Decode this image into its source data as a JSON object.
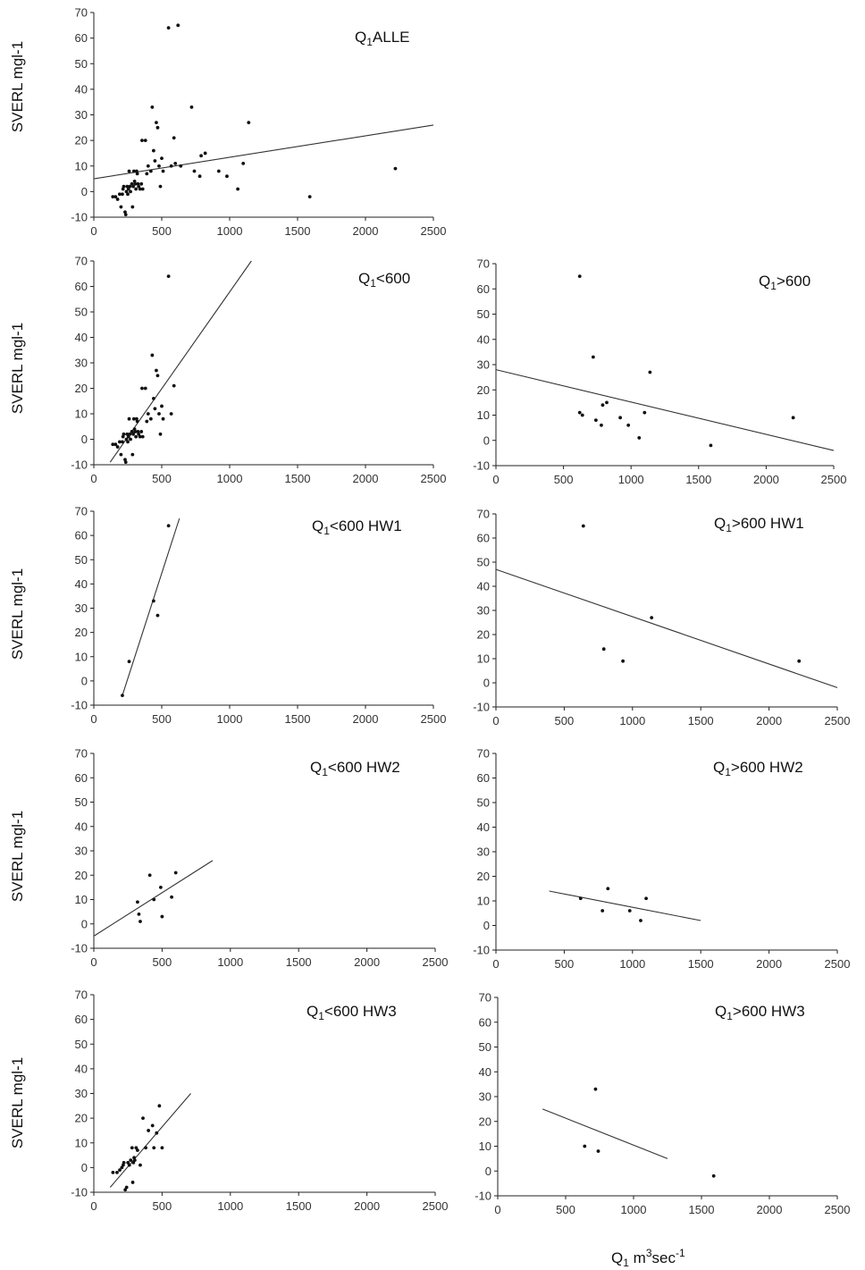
{
  "figure": {
    "y_axis_label": "SVERL mgl-1",
    "x_axis_label": {
      "main": "Q",
      "sub": "1",
      "text1": " m",
      "sup1": "3",
      "text2": "sec",
      "sup2": "-1"
    }
  },
  "chart_data": [
    {
      "type": "scatter",
      "title": {
        "main": "Q",
        "sub": "1",
        "rest": "ALLE"
      },
      "xlim": [
        0,
        2500
      ],
      "ylim": [
        -10,
        70
      ],
      "xticks": [
        0,
        500,
        1000,
        1500,
        2000,
        2500
      ],
      "yticks": [
        -10,
        0,
        10,
        20,
        30,
        40,
        50,
        60,
        70
      ],
      "regression": {
        "x": [
          0,
          2500
        ],
        "y": [
          5,
          26
        ]
      },
      "points": [
        [
          140,
          -2
        ],
        [
          160,
          -2
        ],
        [
          175,
          -3
        ],
        [
          190,
          -1
        ],
        [
          200,
          -6
        ],
        [
          210,
          -1
        ],
        [
          215,
          1
        ],
        [
          220,
          2
        ],
        [
          230,
          -8
        ],
        [
          235,
          -9
        ],
        [
          240,
          0
        ],
        [
          245,
          2
        ],
        [
          250,
          -1
        ],
        [
          255,
          1
        ],
        [
          260,
          8
        ],
        [
          265,
          2
        ],
        [
          270,
          0
        ],
        [
          280,
          3
        ],
        [
          285,
          -6
        ],
        [
          290,
          2
        ],
        [
          295,
          8
        ],
        [
          300,
          4
        ],
        [
          305,
          3
        ],
        [
          310,
          1
        ],
        [
          315,
          8
        ],
        [
          320,
          7
        ],
        [
          325,
          3
        ],
        [
          330,
          2
        ],
        [
          340,
          1
        ],
        [
          350,
          3
        ],
        [
          355,
          20
        ],
        [
          360,
          1
        ],
        [
          380,
          20
        ],
        [
          390,
          7
        ],
        [
          400,
          10
        ],
        [
          420,
          8
        ],
        [
          430,
          33
        ],
        [
          440,
          16
        ],
        [
          450,
          12
        ],
        [
          460,
          27
        ],
        [
          470,
          25
        ],
        [
          480,
          10
        ],
        [
          490,
          2
        ],
        [
          500,
          13
        ],
        [
          510,
          8
        ],
        [
          550,
          64
        ],
        [
          570,
          10
        ],
        [
          590,
          21
        ],
        [
          600,
          11
        ],
        [
          620,
          65
        ],
        [
          640,
          10
        ],
        [
          720,
          33
        ],
        [
          740,
          8
        ],
        [
          780,
          6
        ],
        [
          790,
          14
        ],
        [
          820,
          15
        ],
        [
          920,
          8
        ],
        [
          980,
          6
        ],
        [
          1060,
          1
        ],
        [
          1100,
          11
        ],
        [
          1140,
          27
        ],
        [
          1590,
          -2
        ],
        [
          2220,
          9
        ]
      ]
    },
    {
      "type": "scatter",
      "title": {
        "main": "Q",
        "sub": "1",
        "rest": "<600"
      },
      "xlim": [
        0,
        2500
      ],
      "ylim": [
        -10,
        70
      ],
      "xticks": [
        0,
        500,
        1000,
        1500,
        2000,
        2500
      ],
      "yticks": [
        -10,
        0,
        10,
        20,
        30,
        40,
        50,
        60,
        70
      ],
      "regression": {
        "x": [
          120,
          1160
        ],
        "y": [
          -9,
          70
        ]
      },
      "points": [
        [
          140,
          -2
        ],
        [
          160,
          -2
        ],
        [
          175,
          -3
        ],
        [
          190,
          -1
        ],
        [
          200,
          -6
        ],
        [
          210,
          -1
        ],
        [
          215,
          1
        ],
        [
          220,
          2
        ],
        [
          230,
          -8
        ],
        [
          235,
          -9
        ],
        [
          240,
          0
        ],
        [
          245,
          2
        ],
        [
          250,
          -1
        ],
        [
          255,
          1
        ],
        [
          260,
          8
        ],
        [
          265,
          2
        ],
        [
          270,
          0
        ],
        [
          280,
          3
        ],
        [
          285,
          -6
        ],
        [
          290,
          2
        ],
        [
          295,
          8
        ],
        [
          300,
          4
        ],
        [
          305,
          3
        ],
        [
          310,
          1
        ],
        [
          315,
          8
        ],
        [
          320,
          7
        ],
        [
          325,
          3
        ],
        [
          330,
          2
        ],
        [
          340,
          1
        ],
        [
          350,
          3
        ],
        [
          355,
          20
        ],
        [
          360,
          1
        ],
        [
          380,
          20
        ],
        [
          390,
          7
        ],
        [
          400,
          10
        ],
        [
          420,
          8
        ],
        [
          430,
          33
        ],
        [
          440,
          16
        ],
        [
          450,
          12
        ],
        [
          460,
          27
        ],
        [
          470,
          25
        ],
        [
          480,
          10
        ],
        [
          490,
          2
        ],
        [
          500,
          13
        ],
        [
          510,
          8
        ],
        [
          550,
          64
        ],
        [
          570,
          10
        ],
        [
          590,
          21
        ]
      ]
    },
    {
      "type": "scatter",
      "title": {
        "main": "Q",
        "sub": "1",
        "rest": ">600"
      },
      "xlim": [
        0,
        2500
      ],
      "ylim": [
        -10,
        70
      ],
      "xticks": [
        0,
        500,
        1000,
        1500,
        2000,
        2500
      ],
      "yticks": [
        -10,
        0,
        10,
        20,
        30,
        40,
        50,
        60,
        70
      ],
      "regression": {
        "x": [
          0,
          2500
        ],
        "y": [
          28,
          -4
        ]
      },
      "points": [
        [
          620,
          11
        ],
        [
          640,
          10
        ],
        [
          620,
          65
        ],
        [
          720,
          33
        ],
        [
          740,
          8
        ],
        [
          780,
          6
        ],
        [
          790,
          14
        ],
        [
          820,
          15
        ],
        [
          920,
          9
        ],
        [
          980,
          6
        ],
        [
          1060,
          1
        ],
        [
          1100,
          11
        ],
        [
          1140,
          27
        ],
        [
          1590,
          -2
        ],
        [
          2200,
          9
        ]
      ]
    },
    {
      "type": "scatter",
      "title": {
        "main": "Q",
        "sub": "1",
        "rest": "<600 HW1"
      },
      "xlim": [
        0,
        2500
      ],
      "ylim": [
        -10,
        70
      ],
      "xticks": [
        0,
        500,
        1000,
        1500,
        2000,
        2500
      ],
      "yticks": [
        -10,
        0,
        10,
        20,
        30,
        40,
        50,
        60,
        70
      ],
      "regression": {
        "x": [
          210,
          630
        ],
        "y": [
          -6,
          67
        ]
      },
      "points": [
        [
          210,
          -6
        ],
        [
          260,
          8
        ],
        [
          440,
          33
        ],
        [
          470,
          27
        ],
        [
          550,
          64
        ]
      ]
    },
    {
      "type": "scatter",
      "title": {
        "main": "Q",
        "sub": "1",
        "rest": ">600 HW1"
      },
      "xlim": [
        0,
        2500
      ],
      "ylim": [
        -10,
        70
      ],
      "xticks": [
        0,
        500,
        1000,
        1500,
        2000,
        2500
      ],
      "yticks": [
        -10,
        0,
        10,
        20,
        30,
        40,
        50,
        60,
        70
      ],
      "regression": {
        "x": [
          0,
          2500
        ],
        "y": [
          47,
          -2
        ]
      },
      "points": [
        [
          640,
          65
        ],
        [
          790,
          14
        ],
        [
          930,
          9
        ],
        [
          1140,
          27
        ],
        [
          2220,
          9
        ]
      ]
    },
    {
      "type": "scatter",
      "title": {
        "main": "Q",
        "sub": "1",
        "rest": "<600 HW2"
      },
      "xlim": [
        0,
        2500
      ],
      "ylim": [
        -10,
        70
      ],
      "xticks": [
        0,
        500,
        1000,
        1500,
        2000,
        2500
      ],
      "yticks": [
        -10,
        0,
        10,
        20,
        30,
        40,
        50,
        60,
        70
      ],
      "regression": {
        "x": [
          0,
          870
        ],
        "y": [
          -5,
          26
        ]
      },
      "points": [
        [
          320,
          9
        ],
        [
          330,
          4
        ],
        [
          340,
          1
        ],
        [
          410,
          20
        ],
        [
          440,
          10
        ],
        [
          490,
          15
        ],
        [
          500,
          3
        ],
        [
          570,
          11
        ],
        [
          600,
          21
        ]
      ]
    },
    {
      "type": "scatter",
      "title": {
        "main": "Q",
        "sub": "1",
        "rest": ">600 HW2"
      },
      "xlim": [
        0,
        2500
      ],
      "ylim": [
        -10,
        70
      ],
      "xticks": [
        0,
        500,
        1000,
        1500,
        2000,
        2500
      ],
      "yticks": [
        -10,
        0,
        10,
        20,
        30,
        40,
        50,
        60,
        70
      ],
      "regression": {
        "x": [
          390,
          1500
        ],
        "y": [
          14,
          2
        ]
      },
      "points": [
        [
          620,
          11
        ],
        [
          780,
          6
        ],
        [
          820,
          15
        ],
        [
          980,
          6
        ],
        [
          1060,
          2
        ],
        [
          1100,
          11
        ]
      ]
    },
    {
      "type": "scatter",
      "title": {
        "main": "Q",
        "sub": "1",
        "rest": "<600 HW3"
      },
      "xlim": [
        0,
        2500
      ],
      "ylim": [
        -10,
        70
      ],
      "xticks": [
        0,
        500,
        1000,
        1500,
        2000,
        2500
      ],
      "yticks": [
        -10,
        0,
        10,
        20,
        30,
        40,
        50,
        60,
        70
      ],
      "regression": {
        "x": [
          120,
          710
        ],
        "y": [
          -8,
          30
        ]
      },
      "points": [
        [
          140,
          -2
        ],
        [
          170,
          -2
        ],
        [
          190,
          -1
        ],
        [
          205,
          0
        ],
        [
          215,
          1
        ],
        [
          220,
          2
        ],
        [
          230,
          -9
        ],
        [
          240,
          -8
        ],
        [
          250,
          2
        ],
        [
          260,
          1
        ],
        [
          270,
          3
        ],
        [
          280,
          8
        ],
        [
          285,
          -6
        ],
        [
          290,
          2
        ],
        [
          295,
          4
        ],
        [
          300,
          3
        ],
        [
          310,
          8
        ],
        [
          320,
          7
        ],
        [
          340,
          1
        ],
        [
          360,
          20
        ],
        [
          380,
          8
        ],
        [
          400,
          15
        ],
        [
          430,
          17
        ],
        [
          440,
          8
        ],
        [
          460,
          14
        ],
        [
          480,
          25
        ],
        [
          500,
          8
        ]
      ]
    },
    {
      "type": "scatter",
      "title": {
        "main": "Q",
        "sub": "1",
        "rest": ">600 HW3"
      },
      "xlim": [
        0,
        2500
      ],
      "ylim": [
        -10,
        70
      ],
      "xticks": [
        0,
        500,
        1000,
        1500,
        2000,
        2500
      ],
      "yticks": [
        -10,
        0,
        10,
        20,
        30,
        40,
        50,
        60,
        70
      ],
      "regression": {
        "x": [
          330,
          1250
        ],
        "y": [
          25,
          5
        ]
      },
      "points": [
        [
          640,
          10
        ],
        [
          720,
          33
        ],
        [
          740,
          8
        ],
        [
          1590,
          -2
        ]
      ]
    }
  ]
}
